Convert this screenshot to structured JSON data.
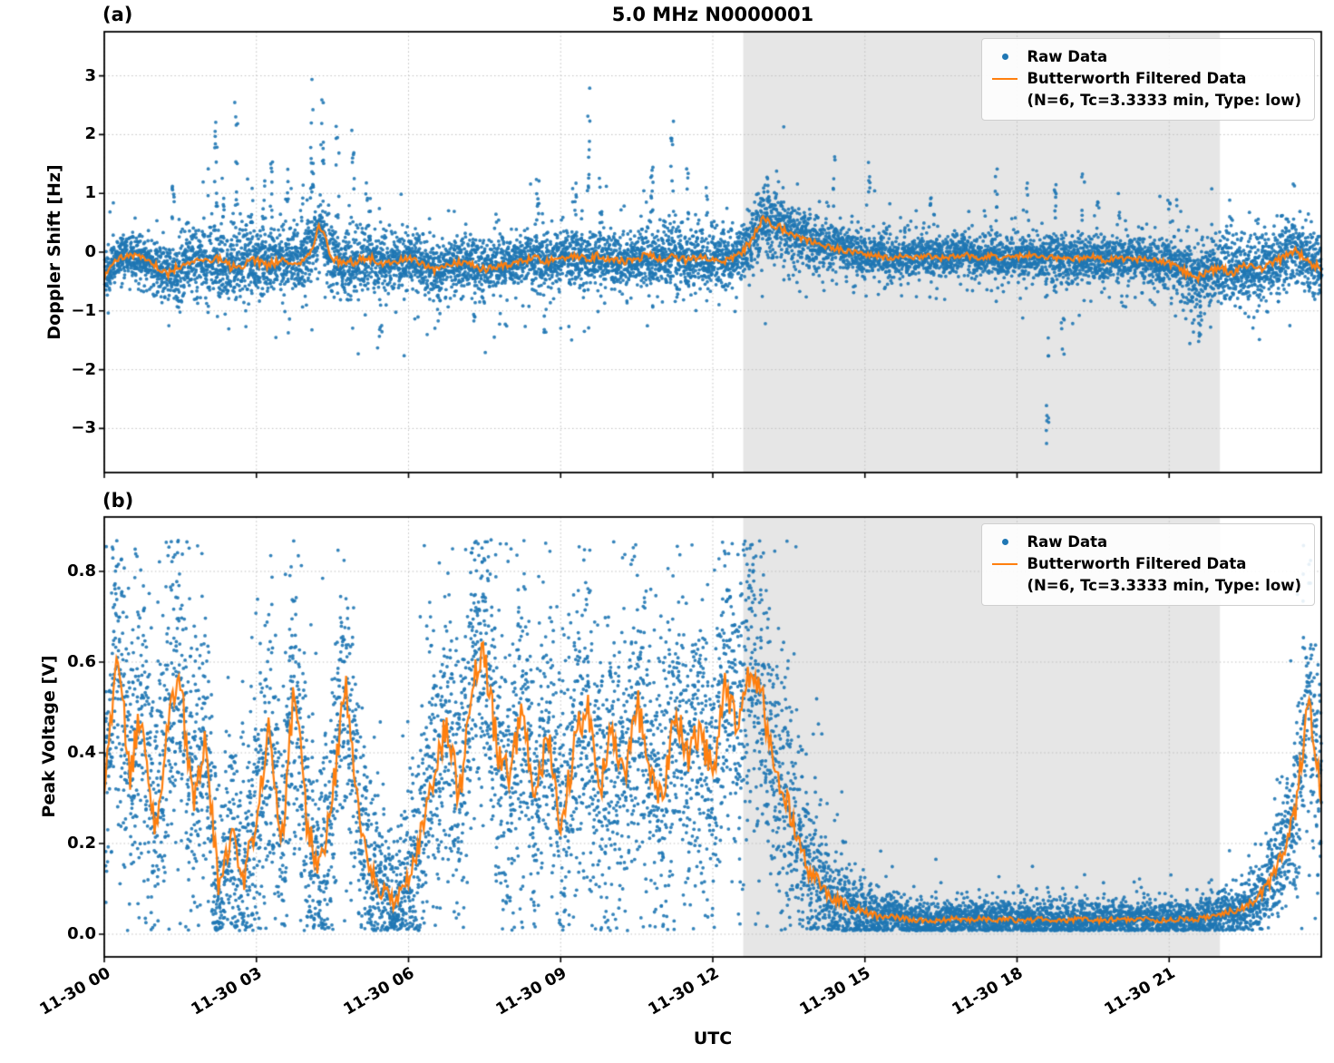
{
  "figure": {
    "title": "5.0 MHz N0000001",
    "xlabel": "UTC",
    "panel_a_tag": "(a)",
    "panel_b_tag": "(b)"
  },
  "legend": {
    "raw_label": "Raw Data",
    "filtered_label": "Butterworth Filtered Data",
    "filtered_params": "(N=6, Tc=3.3333 min, Type: low)"
  },
  "colors": {
    "raw": "#1f77b4",
    "filtered": "#ff7f0e",
    "shade": "#e6e6e6",
    "grid": "#bfbfbf",
    "axis": "#000000"
  },
  "chart_data": [
    {
      "type": "scatter",
      "panel": "a",
      "title": "5.0 MHz N0000001",
      "ylabel": "Doppler Shift [Hz]",
      "xlabel": "UTC",
      "ylim": [
        -3.75,
        3.75
      ],
      "yticks": [
        -3,
        -2,
        -1,
        0,
        1,
        2,
        3
      ],
      "ytick_labels": [
        "−3",
        "−2",
        "−1",
        "0",
        "1",
        "2",
        "3"
      ],
      "xlim_hours": [
        0,
        24
      ],
      "x_start_hours": 0,
      "x_step_hours": 0.25,
      "xticks_hours": [
        0,
        3,
        6,
        9,
        12,
        15,
        18,
        21
      ],
      "xtick_labels": [
        "11-30 00",
        "11-30 03",
        "11-30 06",
        "11-30 09",
        "11-30 12",
        "11-30 15",
        "11-30 18",
        "11-30 21"
      ],
      "shaded_region_hours": [
        12.6,
        22.0
      ],
      "grid": "dotted",
      "legend_position": "upper right",
      "series": [
        {
          "name": "Raw Data",
          "type": "scatter",
          "note": "raw points scatter around the filtered line with this 1-sigma spread; outlier_clusters are [x_hours, y_min, y_max, n_points]",
          "y_spread": [
            0.26,
            0.18,
            0.16,
            0.18,
            0.2,
            0.24,
            0.26,
            0.26,
            0.28,
            0.28,
            0.28,
            0.28,
            0.28,
            0.28,
            0.26,
            0.26,
            0.28,
            0.3,
            0.28,
            0.28,
            0.26,
            0.24,
            0.24,
            0.22,
            0.2,
            0.22,
            0.24,
            0.22,
            0.22,
            0.22,
            0.24,
            0.22,
            0.22,
            0.22,
            0.24,
            0.22,
            0.22,
            0.24,
            0.26,
            0.24,
            0.22,
            0.22,
            0.24,
            0.24,
            0.24,
            0.26,
            0.24,
            0.22,
            0.22,
            0.22,
            0.22,
            0.26,
            0.3,
            0.28,
            0.26,
            0.24,
            0.22,
            0.2,
            0.2,
            0.18,
            0.18,
            0.2,
            0.18,
            0.18,
            0.18,
            0.2,
            0.18,
            0.18,
            0.18,
            0.18,
            0.2,
            0.18,
            0.18,
            0.2,
            0.18,
            0.2,
            0.2,
            0.2,
            0.18,
            0.18,
            0.18,
            0.18,
            0.18,
            0.2,
            0.22,
            0.26,
            0.28,
            0.26,
            0.26,
            0.28,
            0.26,
            0.26,
            0.24,
            0.24,
            0.26,
            0.26,
            0.28
          ],
          "outlier_clusters": [
            [
              1.35,
              0.5,
              1.2,
              8
            ],
            [
              1.45,
              -0.95,
              -0.6,
              5
            ],
            [
              2.2,
              0.6,
              2.3,
              12
            ],
            [
              2.35,
              0.5,
              1.4,
              7
            ],
            [
              2.6,
              0.5,
              2.6,
              10
            ],
            [
              2.9,
              0.5,
              1.8,
              8
            ],
            [
              3.15,
              0.5,
              1.3,
              7
            ],
            [
              3.3,
              0.5,
              1.6,
              9
            ],
            [
              3.6,
              0.5,
              1.5,
              8
            ],
            [
              3.9,
              0.5,
              1.2,
              6
            ],
            [
              4.1,
              0.6,
              3.1,
              14
            ],
            [
              4.3,
              0.5,
              2.7,
              10
            ],
            [
              4.6,
              0.5,
              2.2,
              9
            ],
            [
              4.9,
              0.5,
              2.1,
              9
            ],
            [
              5.2,
              0.4,
              1.1,
              6
            ],
            [
              5.45,
              -1.55,
              -0.8,
              7
            ],
            [
              6.6,
              -1.1,
              -0.7,
              5
            ],
            [
              7.3,
              -1.2,
              -0.7,
              5
            ],
            [
              8.55,
              0.5,
              1.5,
              8
            ],
            [
              8.7,
              -1.4,
              -0.8,
              5
            ],
            [
              9.3,
              0.5,
              1.3,
              6
            ],
            [
              9.55,
              0.8,
              3.5,
              10
            ],
            [
              9.8,
              0.4,
              1.2,
              6
            ],
            [
              10.8,
              0.5,
              1.6,
              8
            ],
            [
              11.2,
              0.6,
              2.3,
              9
            ],
            [
              11.5,
              0.4,
              1.5,
              6
            ],
            [
              11.9,
              0.4,
              1.1,
              5
            ],
            [
              12.2,
              0.3,
              0.8,
              5
            ],
            [
              13.1,
              0.7,
              1.3,
              8
            ],
            [
              14.4,
              0.5,
              1.7,
              6
            ],
            [
              15.1,
              0.5,
              1.7,
              6
            ],
            [
              16.3,
              0.4,
              1.1,
              5
            ],
            [
              17.6,
              0.5,
              1.5,
              6
            ],
            [
              18.2,
              0.5,
              1.2,
              5
            ],
            [
              18.6,
              -3.45,
              -1.0,
              10
            ],
            [
              18.75,
              0.5,
              1.6,
              8
            ],
            [
              18.9,
              -1.9,
              -1.0,
              6
            ],
            [
              19.3,
              0.5,
              1.4,
              6
            ],
            [
              19.6,
              0.4,
              1.1,
              5
            ],
            [
              20.0,
              0.4,
              1.0,
              5
            ],
            [
              21.0,
              0.5,
              1.0,
              5
            ],
            [
              21.6,
              -1.6,
              -0.9,
              6
            ],
            [
              22.2,
              0.3,
              0.9,
              5
            ],
            [
              23.3,
              0.3,
              0.7,
              4
            ]
          ]
        },
        {
          "name": "Butterworth Filtered Data (N=6, Tc=3.3333 min, Type: low)",
          "type": "line",
          "y": [
            -0.45,
            -0.12,
            -0.05,
            -0.1,
            -0.22,
            -0.38,
            -0.22,
            -0.12,
            -0.16,
            -0.1,
            -0.26,
            -0.2,
            -0.14,
            -0.22,
            -0.12,
            -0.16,
            -0.12,
            0.45,
            -0.12,
            -0.2,
            -0.15,
            -0.1,
            -0.22,
            -0.16,
            -0.1,
            -0.2,
            -0.3,
            -0.24,
            -0.16,
            -0.22,
            -0.3,
            -0.24,
            -0.2,
            -0.14,
            -0.1,
            -0.16,
            -0.1,
            -0.06,
            -0.12,
            -0.06,
            -0.12,
            -0.16,
            -0.1,
            -0.06,
            -0.12,
            -0.06,
            -0.14,
            -0.1,
            -0.12,
            -0.16,
            -0.06,
            0.18,
            0.6,
            0.46,
            0.34,
            0.24,
            0.16,
            0.1,
            0.05,
            0.0,
            -0.04,
            -0.06,
            -0.1,
            -0.06,
            -0.1,
            -0.05,
            -0.1,
            -0.08,
            -0.05,
            -0.1,
            -0.06,
            -0.1,
            -0.08,
            -0.05,
            -0.1,
            -0.08,
            -0.14,
            -0.1,
            -0.08,
            -0.14,
            -0.1,
            -0.14,
            -0.1,
            -0.16,
            -0.2,
            -0.3,
            -0.45,
            -0.34,
            -0.28,
            -0.36,
            -0.24,
            -0.3,
            -0.2,
            -0.1,
            0.02,
            -0.16,
            -0.28
          ]
        }
      ]
    },
    {
      "type": "scatter",
      "panel": "b",
      "ylabel": "Peak Voltage [V]",
      "xlabel": "UTC",
      "ylim": [
        -0.05,
        0.92
      ],
      "yticks": [
        0.0,
        0.2,
        0.4,
        0.6,
        0.8
      ],
      "ytick_labels": [
        "0.0",
        "0.2",
        "0.4",
        "0.6",
        "0.8"
      ],
      "xlim_hours": [
        0,
        24
      ],
      "x_start_hours": 0,
      "x_step_hours": 0.25,
      "xticks_hours": [
        0,
        3,
        6,
        9,
        12,
        15,
        18,
        21
      ],
      "xtick_labels": [
        "11-30 00",
        "11-30 03",
        "11-30 06",
        "11-30 09",
        "11-30 12",
        "11-30 15",
        "11-30 18",
        "11-30 21"
      ],
      "shaded_region_hours": [
        12.6,
        22.0
      ],
      "grid": "dotted",
      "legend_position": "upper right",
      "series": [
        {
          "name": "Raw Data",
          "type": "scatter",
          "note": "raw points scatter around the filtered line with this 1-sigma spread, clipped to [0, 0.87] V",
          "y_spread": [
            0.15,
            0.16,
            0.16,
            0.16,
            0.15,
            0.16,
            0.16,
            0.15,
            0.15,
            0.1,
            0.12,
            0.11,
            0.13,
            0.15,
            0.13,
            0.16,
            0.13,
            0.11,
            0.13,
            0.16,
            0.13,
            0.1,
            0.08,
            0.07,
            0.09,
            0.12,
            0.15,
            0.16,
            0.15,
            0.16,
            0.16,
            0.16,
            0.15,
            0.16,
            0.14,
            0.16,
            0.13,
            0.15,
            0.16,
            0.14,
            0.16,
            0.14,
            0.16,
            0.15,
            0.14,
            0.16,
            0.15,
            0.16,
            0.15,
            0.16,
            0.16,
            0.16,
            0.16,
            0.14,
            0.13,
            0.1,
            0.08,
            0.06,
            0.05,
            0.04,
            0.03,
            0.025,
            0.02,
            0.02,
            0.02,
            0.02,
            0.02,
            0.02,
            0.02,
            0.02,
            0.02,
            0.02,
            0.02,
            0.02,
            0.02,
            0.02,
            0.02,
            0.02,
            0.02,
            0.02,
            0.02,
            0.02,
            0.02,
            0.02,
            0.02,
            0.02,
            0.02,
            0.025,
            0.025,
            0.03,
            0.03,
            0.04,
            0.05,
            0.07,
            0.09,
            0.12,
            0.1
          ],
          "outlier_clusters": []
        },
        {
          "name": "Butterworth Filtered Data (N=6, Tc=3.3333 min, Type: low)",
          "type": "line",
          "y": [
            0.3,
            0.64,
            0.35,
            0.5,
            0.24,
            0.46,
            0.55,
            0.3,
            0.44,
            0.1,
            0.22,
            0.12,
            0.26,
            0.46,
            0.2,
            0.56,
            0.24,
            0.14,
            0.3,
            0.56,
            0.28,
            0.14,
            0.09,
            0.07,
            0.12,
            0.22,
            0.36,
            0.46,
            0.3,
            0.56,
            0.62,
            0.4,
            0.34,
            0.5,
            0.28,
            0.46,
            0.24,
            0.4,
            0.52,
            0.3,
            0.44,
            0.34,
            0.52,
            0.38,
            0.28,
            0.5,
            0.38,
            0.46,
            0.34,
            0.56,
            0.44,
            0.6,
            0.5,
            0.34,
            0.28,
            0.18,
            0.12,
            0.09,
            0.07,
            0.06,
            0.05,
            0.04,
            0.04,
            0.035,
            0.03,
            0.03,
            0.03,
            0.035,
            0.03,
            0.035,
            0.03,
            0.035,
            0.03,
            0.03,
            0.035,
            0.03,
            0.03,
            0.035,
            0.03,
            0.03,
            0.035,
            0.03,
            0.035,
            0.03,
            0.03,
            0.035,
            0.03,
            0.04,
            0.045,
            0.05,
            0.06,
            0.08,
            0.12,
            0.18,
            0.28,
            0.52,
            0.3
          ]
        }
      ]
    }
  ]
}
